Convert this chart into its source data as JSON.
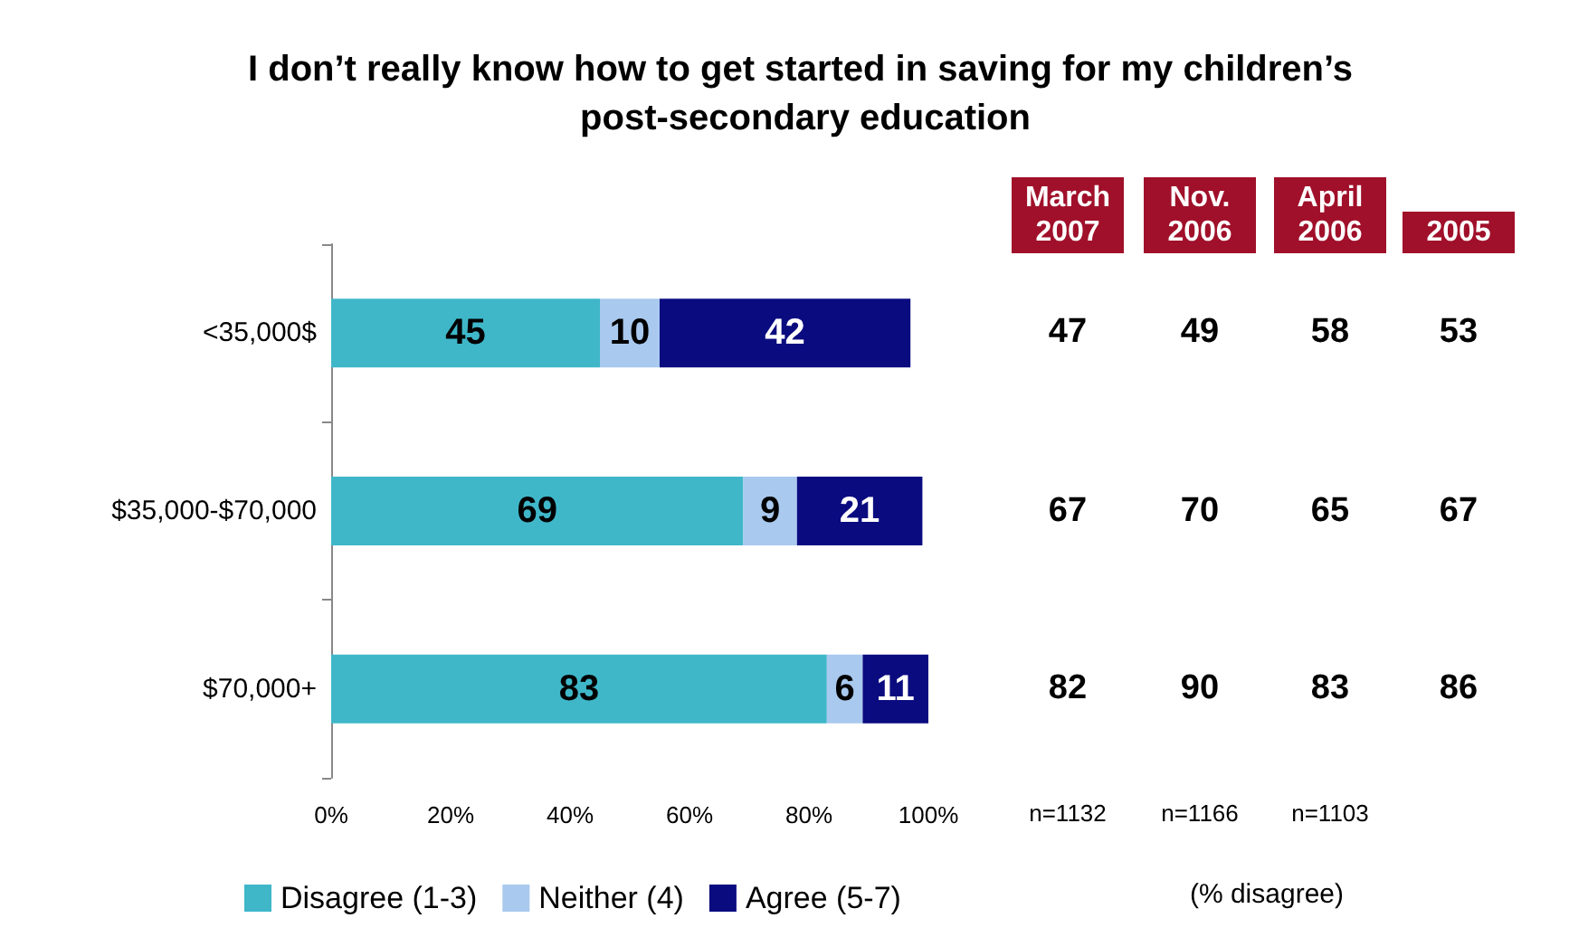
{
  "chart_data": [
    {
      "type": "bar",
      "title": "I don’t really know how to get started in saving for my children’s post-secondary education",
      "orientation": "horizontal",
      "stacked": true,
      "categories": [
        "<35,000$",
        "$35,000-$70,000",
        "$70,000+"
      ],
      "series": [
        {
          "name": "Disagree (1-3)",
          "color": "#3fb7c9",
          "values": [
            45,
            69,
            83
          ]
        },
        {
          "name": "Neither (4)",
          "color": "#a9c9ee",
          "values": [
            10,
            9,
            6
          ]
        },
        {
          "name": "Agree (5-7)",
          "color": "#0b0b80",
          "values": [
            42,
            21,
            11
          ]
        }
      ],
      "xlim": [
        0,
        100
      ],
      "xticks": [
        {
          "value": 0,
          "label": "0%"
        },
        {
          "value": 20,
          "label": "20%"
        },
        {
          "value": 40,
          "label": "40%"
        },
        {
          "value": 60,
          "label": "60%"
        },
        {
          "value": 80,
          "label": "80%"
        },
        {
          "value": 100,
          "label": "100%"
        }
      ],
      "data_labels": true,
      "legend": "bottom left",
      "grid": false
    },
    {
      "type": "other",
      "annotations": [
        "March 2007",
        "Nov. 2006",
        "April 2006",
        "2005",
        "47",
        "49",
        "58",
        "53",
        "67",
        "70",
        "65",
        "67",
        "82",
        "90",
        "83",
        "86",
        "n=1132",
        "n=1166",
        "n=1103",
        "(% disagree)"
      ]
    }
  ]
}
